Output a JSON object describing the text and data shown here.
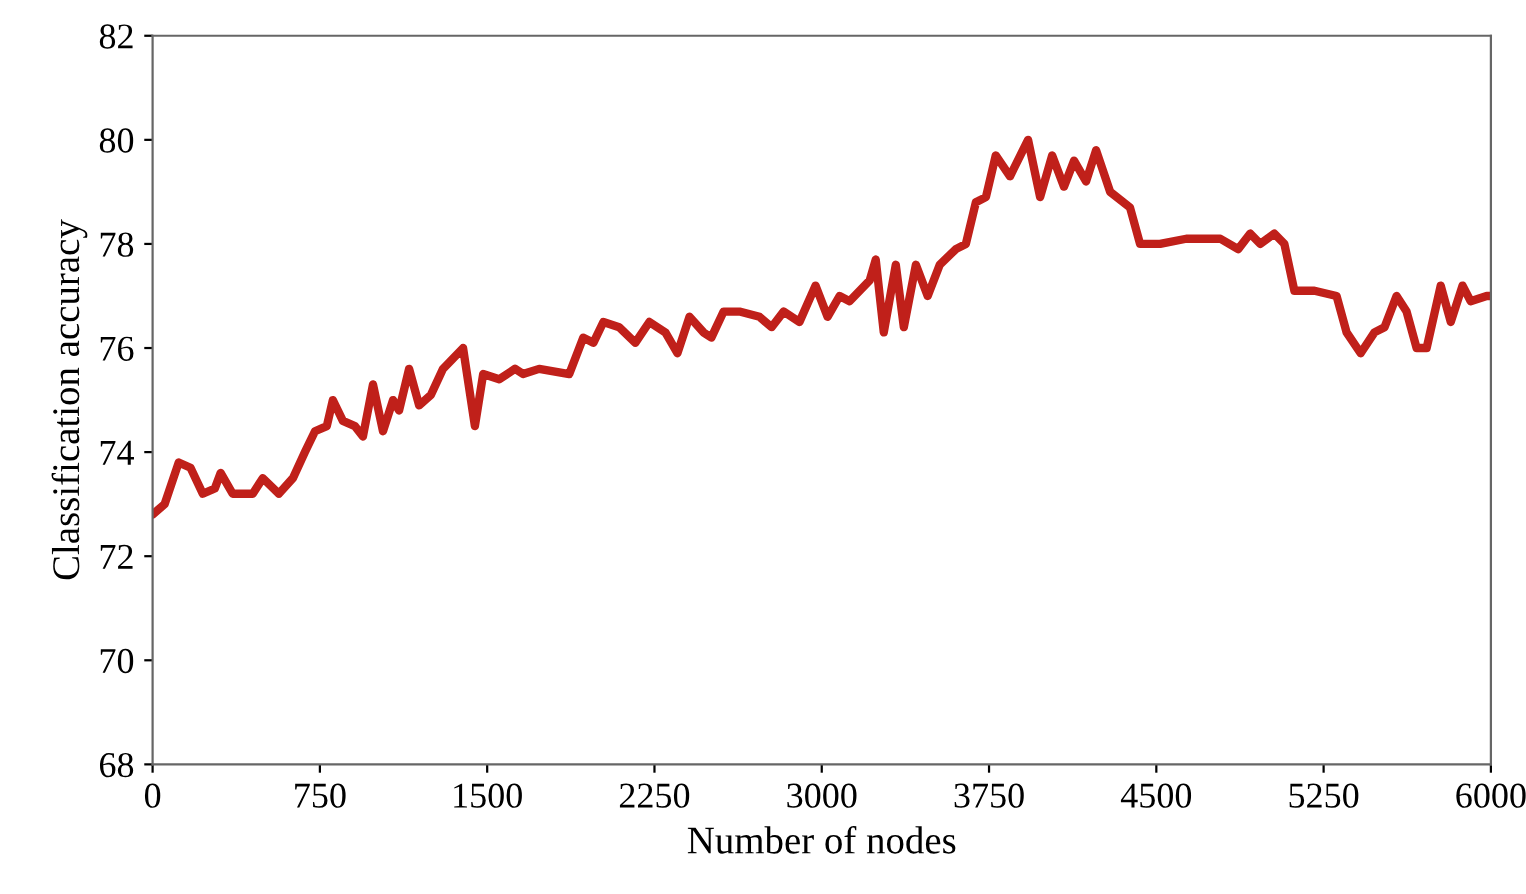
{
  "chart_data": {
    "type": "line",
    "xlabel": "Number of nodes",
    "ylabel": "Classification accuracy",
    "xlim": [
      0,
      6000
    ],
    "xticks": [
      0,
      750,
      1500,
      2250,
      3000,
      3750,
      4500,
      5250,
      6000
    ],
    "ylim": [
      68,
      82
    ],
    "yticks": [
      68,
      70,
      72,
      74,
      76,
      78,
      80,
      82
    ],
    "grid": false,
    "legend": false,
    "marker": "none",
    "line_style": "solid",
    "series": [
      {
        "color": "#c0201a",
        "x": [
          0,
          54,
          117,
          170,
          225,
          279,
          305,
          359,
          449,
          494,
          566,
          629,
          683,
          728,
          781,
          808,
          853,
          907,
          943,
          988,
          1033,
          1078,
          1105,
          1150,
          1195,
          1248,
          1302,
          1392,
          1445,
          1482,
          1554,
          1625,
          1661,
          1733,
          1868,
          1931,
          1976,
          2021,
          2092,
          2164,
          2227,
          2299,
          2353,
          2407,
          2470,
          2505,
          2560,
          2631,
          2721,
          2775,
          2829,
          2900,
          2972,
          3026,
          3080,
          3125,
          3215,
          3242,
          3278,
          3332,
          3368,
          3422,
          3475,
          3529,
          3601,
          3646,
          3691,
          3736,
          3780,
          3844,
          3925,
          3979,
          4033,
          4086,
          4131,
          4185,
          4230,
          4293,
          4382,
          4427,
          4517,
          4634,
          4787,
          4867,
          4921,
          4966,
          5029,
          5074,
          5119,
          5209,
          5308,
          5353,
          5416,
          5478,
          5523,
          5577,
          5622,
          5667,
          5712,
          5775,
          5820,
          5873,
          5909,
          5981,
          6000
        ],
        "values": [
          72.8,
          73.0,
          73.8,
          73.7,
          73.2,
          73.3,
          73.6,
          73.2,
          73.2,
          73.5,
          73.2,
          73.5,
          74.0,
          74.4,
          74.5,
          75.0,
          74.6,
          74.5,
          74.3,
          75.3,
          74.4,
          75.0,
          74.8,
          75.6,
          74.9,
          75.1,
          75.6,
          76.0,
          74.5,
          75.5,
          75.4,
          75.6,
          75.5,
          75.6,
          75.5,
          76.2,
          76.1,
          76.5,
          76.4,
          76.1,
          76.5,
          76.3,
          75.9,
          76.6,
          76.3,
          76.2,
          76.7,
          76.7,
          76.6,
          76.4,
          76.7,
          76.5,
          77.2,
          76.6,
          77.0,
          76.9,
          77.3,
          77.7,
          76.3,
          77.6,
          76.4,
          77.6,
          77.0,
          77.6,
          77.9,
          78.0,
          78.8,
          78.9,
          79.7,
          79.3,
          80.0,
          78.9,
          79.7,
          79.1,
          79.6,
          79.2,
          79.8,
          79.0,
          78.7,
          78.0,
          78.0,
          78.1,
          78.1,
          77.9,
          78.2,
          78.0,
          78.2,
          78.0,
          77.1,
          77.1,
          77.0,
          76.3,
          75.9,
          76.3,
          76.4,
          77.0,
          76.7,
          76.0,
          76.0,
          77.2,
          76.5,
          77.2,
          76.9,
          77.0,
          77.0
        ]
      }
    ]
  }
}
